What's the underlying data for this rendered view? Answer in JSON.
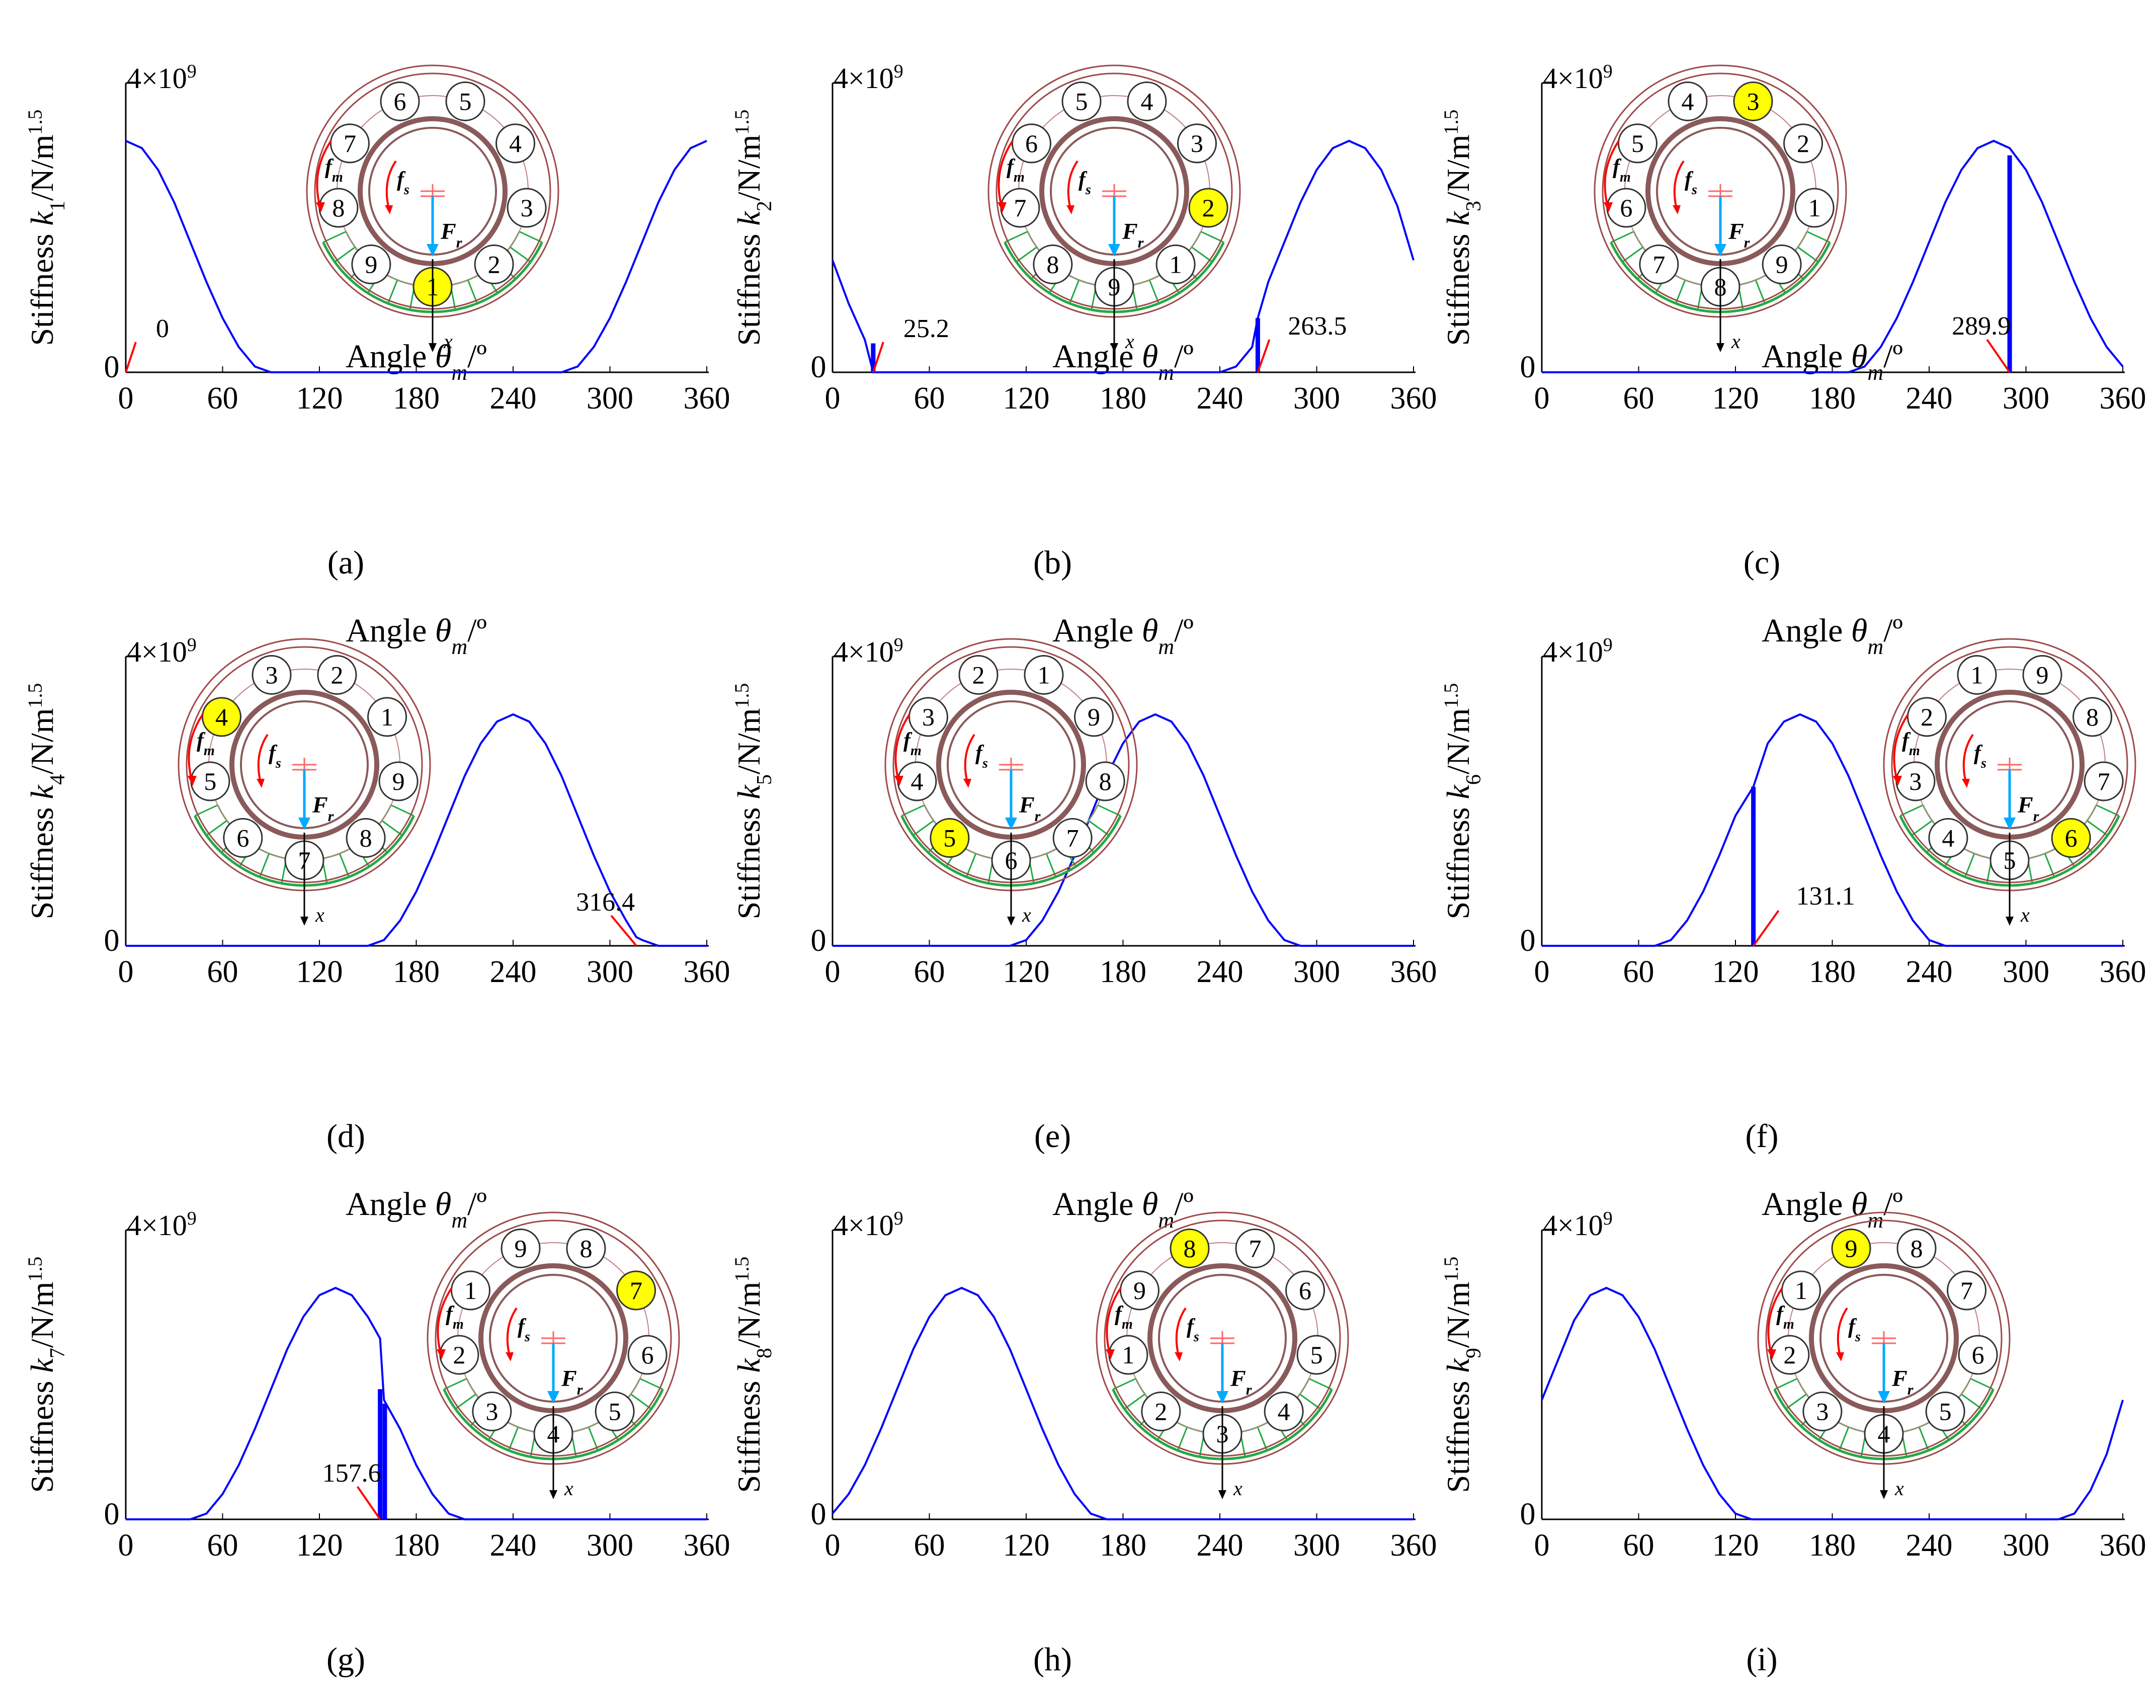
{
  "figure": {
    "x_axis_label": "Angle θm/º",
    "y_axis_label_prefix": "Stiffness",
    "y_axis_label_suffix": "/N/m",
    "y_axis_label_exponent": "1.5",
    "y_max_label_base": "4×10",
    "y_max_label_exponent": "9",
    "diagram_text": {
      "fm": "fm",
      "fs": "fs",
      "Fr": "Fr",
      "x": "x"
    }
  },
  "colors": {
    "curve": "#0000ff",
    "annotation_line": "#ff0000",
    "highlight_ball": "#ffff00",
    "outer_ring": "#a04a4a",
    "inner_ring": "#8a5a5a",
    "load_zone": "#22aa44",
    "load_arrow": "#00aaff",
    "axis": "#000000"
  },
  "chart_data": [
    {
      "type": "line",
      "panel": "(a)",
      "ball": "1",
      "ylabel_subscript": "1",
      "title": "",
      "xlabel": "Angle θm/º",
      "ylabel": "Stiffness k1/N/m1.5",
      "xlim": [
        0,
        360
      ],
      "ylim": [
        0,
        4000000000.0
      ],
      "xticks": [
        0,
        60,
        120,
        180,
        240,
        300,
        360
      ],
      "yticks": [
        0,
        "4×10⁹"
      ],
      "x": [
        0,
        10,
        20,
        30,
        40,
        50,
        60,
        70,
        80,
        90,
        100,
        110,
        120,
        130,
        140,
        150,
        160,
        170,
        180,
        190,
        200,
        210,
        220,
        230,
        240,
        250,
        260,
        270,
        280,
        290,
        300,
        310,
        320,
        330,
        340,
        350,
        360
      ],
      "y": [
        3200000000.0,
        3100000000.0,
        2800000000.0,
        2350000000.0,
        1800000000.0,
        1250000000.0,
        750000000.0,
        350000000.0,
        80000000.0,
        0,
        0,
        0,
        0,
        0,
        0,
        0,
        0,
        0,
        0,
        0,
        0,
        0,
        0,
        0,
        0,
        0,
        0,
        0,
        80000000.0,
        350000000.0,
        750000000.0,
        1250000000.0,
        1800000000.0,
        2350000000.0,
        2800000000.0,
        3100000000.0,
        3200000000.0
      ],
      "step_line": null,
      "annotation": {
        "text": "0",
        "x": 0
      },
      "diagram_balls": [
        "6",
        "5",
        "4",
        "3",
        "2",
        "1",
        "9",
        "8",
        "7"
      ],
      "diagram_position": "right",
      "load_zone_count": 8
    },
    {
      "type": "line",
      "panel": "(b)",
      "ball": "2",
      "ylabel_subscript": "2",
      "title": "",
      "xlabel": "Angle θm/º",
      "ylabel": "Stiffness k2/N/m1.5",
      "xlim": [
        0,
        360
      ],
      "ylim": [
        0,
        4000000000.0
      ],
      "xticks": [
        0,
        60,
        120,
        180,
        240,
        300,
        360
      ],
      "yticks": [
        0,
        "4×10⁹"
      ],
      "x": [
        0,
        10,
        20,
        25.2,
        30,
        40,
        50,
        60,
        240,
        250,
        260,
        263.5,
        270,
        280,
        290,
        300,
        310,
        320,
        330,
        340,
        350,
        360
      ],
      "y": [
        1550000000.0,
        950000000.0,
        450000000.0,
        0,
        0,
        0,
        0,
        0,
        0,
        80000000.0,
        350000000.0,
        750000000.0,
        1250000000.0,
        1800000000.0,
        2350000000.0,
        2800000000.0,
        3100000000.0,
        3200000000.0,
        3100000000.0,
        2800000000.0,
        2300000000.0,
        1550000000.0
      ],
      "step_line": {
        "x": 263.5,
        "y": 750000000.0
      },
      "step_line2": {
        "x": 25.2,
        "y": 400000000.0
      },
      "annotation": {
        "text": "25.2",
        "x": 25.2
      },
      "annotation2": {
        "text": "263.5",
        "x": 263.5
      },
      "diagram_balls": [
        "5",
        "4",
        "3",
        "2",
        "1",
        "9",
        "8",
        "7",
        "6"
      ],
      "diagram_position": "right",
      "load_zone_count": 8
    },
    {
      "type": "line",
      "panel": "(c)",
      "ball": "3",
      "ylabel_subscript": "3",
      "title": "",
      "xlabel": "Angle θm/º",
      "ylabel": "Stiffness k3/N/m1.5",
      "xlim": [
        0,
        360
      ],
      "ylim": [
        0,
        4000000000.0
      ],
      "xticks": [
        0,
        60,
        120,
        180,
        240,
        300,
        360
      ],
      "yticks": [
        0,
        "4×10⁹"
      ],
      "x": [
        0,
        190,
        200,
        210,
        220,
        230,
        240,
        250,
        260,
        270,
        280,
        289.9,
        300,
        310,
        320,
        330,
        340,
        350,
        360
      ],
      "y": [
        0,
        0,
        80000000.0,
        350000000.0,
        750000000.0,
        1250000000.0,
        1800000000.0,
        2350000000.0,
        2800000000.0,
        3100000000.0,
        3200000000.0,
        3100000000.0,
        2800000000.0,
        2350000000.0,
        1800000000.0,
        1250000000.0,
        750000000.0,
        350000000.0,
        80000000.0
      ],
      "step_line": {
        "x": 289.9,
        "y": 3000000000.0
      },
      "annotation": {
        "text": "289.9",
        "x": 289.9
      },
      "diagram_balls": [
        "4",
        "3",
        "2",
        "1",
        "9",
        "8",
        "7",
        "6",
        "5"
      ],
      "diagram_position": "left",
      "load_zone_count": 8
    },
    {
      "type": "line",
      "panel": "(d)",
      "ball": "4",
      "ylabel_subscript": "4",
      "title": "",
      "xlabel": "Angle θm/º",
      "ylabel": "Stiffness k4/N/m1.5",
      "xlim": [
        0,
        360
      ],
      "ylim": [
        0,
        4000000000.0
      ],
      "xticks": [
        0,
        60,
        120,
        180,
        240,
        300,
        360
      ],
      "yticks": [
        0,
        "4×10⁹"
      ],
      "x": [
        0,
        150,
        160,
        170,
        180,
        190,
        200,
        210,
        220,
        230,
        240,
        250,
        260,
        270,
        280,
        290,
        300,
        310,
        316.4,
        320,
        330,
        340,
        360
      ],
      "y": [
        0,
        0,
        80000000.0,
        350000000.0,
        750000000.0,
        1250000000.0,
        1800000000.0,
        2350000000.0,
        2800000000.0,
        3100000000.0,
        3200000000.0,
        3100000000.0,
        2800000000.0,
        2350000000.0,
        1800000000.0,
        1250000000.0,
        750000000.0,
        350000000.0,
        120000000.0,
        80000000.0,
        0,
        0,
        0
      ],
      "step_line": null,
      "annotation": {
        "text": "316.4",
        "x": 316.4
      },
      "diagram_balls": [
        "3",
        "2",
        "1",
        "9",
        "8",
        "7",
        "6",
        "5",
        "4"
      ],
      "diagram_position": "left",
      "load_zone_count": 8
    },
    {
      "type": "line",
      "panel": "(e)",
      "ball": "5",
      "ylabel_subscript": "5",
      "title": "",
      "xlabel": "Angle θm/º",
      "ylabel": "Stiffness k5/N/m1.5",
      "xlim": [
        0,
        360
      ],
      "ylim": [
        0,
        4000000000.0
      ],
      "xticks": [
        0,
        60,
        120,
        180,
        240,
        300,
        360
      ],
      "yticks": [
        0,
        "4×10⁹"
      ],
      "x": [
        0,
        110,
        120,
        130,
        140,
        150,
        160,
        170,
        180,
        190,
        200,
        210,
        220,
        230,
        240,
        250,
        260,
        270,
        280,
        290,
        360
      ],
      "y": [
        0,
        0,
        80000000.0,
        350000000.0,
        750000000.0,
        1250000000.0,
        1800000000.0,
        2350000000.0,
        2800000000.0,
        3100000000.0,
        3200000000.0,
        3100000000.0,
        2800000000.0,
        2350000000.0,
        1800000000.0,
        1250000000.0,
        750000000.0,
        350000000.0,
        80000000.0,
        0,
        0
      ],
      "step_line": null,
      "annotation": null,
      "diagram_balls": [
        "2",
        "1",
        "9",
        "8",
        "7",
        "6",
        "5",
        "4",
        "3"
      ],
      "diagram_position": "left",
      "load_zone_count": 8
    },
    {
      "type": "line",
      "panel": "(f)",
      "ball": "6",
      "ylabel_subscript": "6",
      "title": "",
      "xlabel": "Angle θm/º",
      "ylabel": "Stiffness k6/N/m1.5",
      "xlim": [
        0,
        360
      ],
      "ylim": [
        0,
        4000000000.0
      ],
      "xticks": [
        0,
        60,
        120,
        180,
        240,
        300,
        360
      ],
      "yticks": [
        0,
        "4×10⁹"
      ],
      "x": [
        0,
        70,
        80,
        90,
        100,
        110,
        120,
        131.1,
        140,
        150,
        160,
        170,
        180,
        190,
        200,
        210,
        220,
        230,
        240,
        250,
        360
      ],
      "y": [
        0,
        0,
        80000000.0,
        350000000.0,
        750000000.0,
        1250000000.0,
        1800000000.0,
        2200000000.0,
        2800000000.0,
        3100000000.0,
        3200000000.0,
        3100000000.0,
        2800000000.0,
        2350000000.0,
        1800000000.0,
        1250000000.0,
        750000000.0,
        350000000.0,
        80000000.0,
        0,
        0
      ],
      "step_line": {
        "x": 131.1,
        "y": 2200000000.0
      },
      "annotation": {
        "text": "131.1",
        "x": 131.1
      },
      "diagram_balls": [
        "1",
        "9",
        "8",
        "7",
        "6",
        "5",
        "4",
        "3",
        "2"
      ],
      "diagram_position": "right",
      "load_zone_count": 8
    },
    {
      "type": "line",
      "panel": "(g)",
      "ball": "7",
      "ylabel_subscript": "7",
      "title": "",
      "xlabel": "Angle θm/º",
      "ylabel": "Stiffness k7/N/m1.5",
      "xlim": [
        0,
        360
      ],
      "ylim": [
        0,
        4000000000.0
      ],
      "xticks": [
        0,
        60,
        120,
        180,
        240,
        300,
        360
      ],
      "yticks": [
        0,
        "4×10⁹"
      ],
      "x": [
        0,
        40,
        50,
        60,
        70,
        80,
        90,
        100,
        110,
        120,
        130,
        140,
        150,
        157.6,
        160,
        170,
        180,
        190,
        200,
        210,
        360
      ],
      "y": [
        0,
        0,
        80000000.0,
        350000000.0,
        750000000.0,
        1250000000.0,
        1800000000.0,
        2350000000.0,
        2800000000.0,
        3100000000.0,
        3200000000.0,
        3100000000.0,
        2800000000.0,
        2500000000.0,
        1650000000.0,
        1250000000.0,
        750000000.0,
        350000000.0,
        80000000.0,
        0,
        0
      ],
      "step_line": {
        "x": 157.6,
        "y": 1800000000.0
      },
      "step_line2": {
        "x": 160.5,
        "y": 1600000000.0
      },
      "annotation": {
        "text": "157.6",
        "x": 157.6
      },
      "diagram_balls": [
        "9",
        "8",
        "7",
        "6",
        "5",
        "4",
        "3",
        "2",
        "1"
      ],
      "diagram_position": "right",
      "load_zone_count": 8
    },
    {
      "type": "line",
      "panel": "(h)",
      "ball": "8",
      "ylabel_subscript": "8",
      "title": "",
      "xlabel": "Angle θm/º",
      "ylabel": "Stiffness k8/N/m1.5",
      "xlim": [
        0,
        360
      ],
      "ylim": [
        0,
        4000000000.0
      ],
      "xticks": [
        0,
        60,
        120,
        180,
        240,
        300,
        360
      ],
      "yticks": [
        0,
        "4×10⁹"
      ],
      "x": [
        0,
        10,
        20,
        30,
        40,
        50,
        60,
        70,
        80,
        90,
        100,
        110,
        120,
        130,
        140,
        150,
        160,
        170,
        360
      ],
      "y": [
        80000000.0,
        350000000.0,
        750000000.0,
        1250000000.0,
        1800000000.0,
        2350000000.0,
        2800000000.0,
        3100000000.0,
        3200000000.0,
        3100000000.0,
        2800000000.0,
        2350000000.0,
        1800000000.0,
        1250000000.0,
        750000000.0,
        350000000.0,
        80000000.0,
        0,
        0
      ],
      "step_line": null,
      "annotation": null,
      "diagram_balls": [
        "8",
        "7",
        "6",
        "5",
        "4",
        "3",
        "2",
        "1",
        "9"
      ],
      "diagram_position": "right",
      "load_zone_count": 8
    },
    {
      "type": "line",
      "panel": "(i)",
      "ball": "9",
      "ylabel_subscript": "9",
      "title": "",
      "xlabel": "Angle θm/º",
      "ylabel": "Stiffness k9/N/m1.5",
      "xlim": [
        0,
        360
      ],
      "ylim": [
        0,
        4000000000.0
      ],
      "xticks": [
        0,
        60,
        120,
        180,
        240,
        300,
        360
      ],
      "yticks": [
        0,
        "4×10⁹"
      ],
      "x": [
        0,
        10,
        20,
        30,
        40,
        50,
        60,
        70,
        80,
        90,
        100,
        110,
        120,
        130,
        320,
        330,
        340,
        350,
        360
      ],
      "y": [
        1650000000.0,
        2200000000.0,
        2750000000.0,
        3100000000.0,
        3200000000.0,
        3100000000.0,
        2800000000.0,
        2350000000.0,
        1800000000.0,
        1250000000.0,
        750000000.0,
        350000000.0,
        80000000.0,
        0,
        0,
        80000000.0,
        400000000.0,
        900000000.0,
        1650000000.0
      ],
      "step_line": null,
      "annotation": null,
      "diagram_balls": [
        "9",
        "8",
        "7",
        "6",
        "5",
        "4",
        "3",
        "2",
        "1"
      ],
      "diagram_position": "right",
      "load_zone_count": 8
    }
  ],
  "panel_labels": [
    "(a)",
    "(b)",
    "(c)",
    "(d)",
    "(e)",
    "(f)",
    "(g)",
    "(h)",
    "(i)"
  ]
}
